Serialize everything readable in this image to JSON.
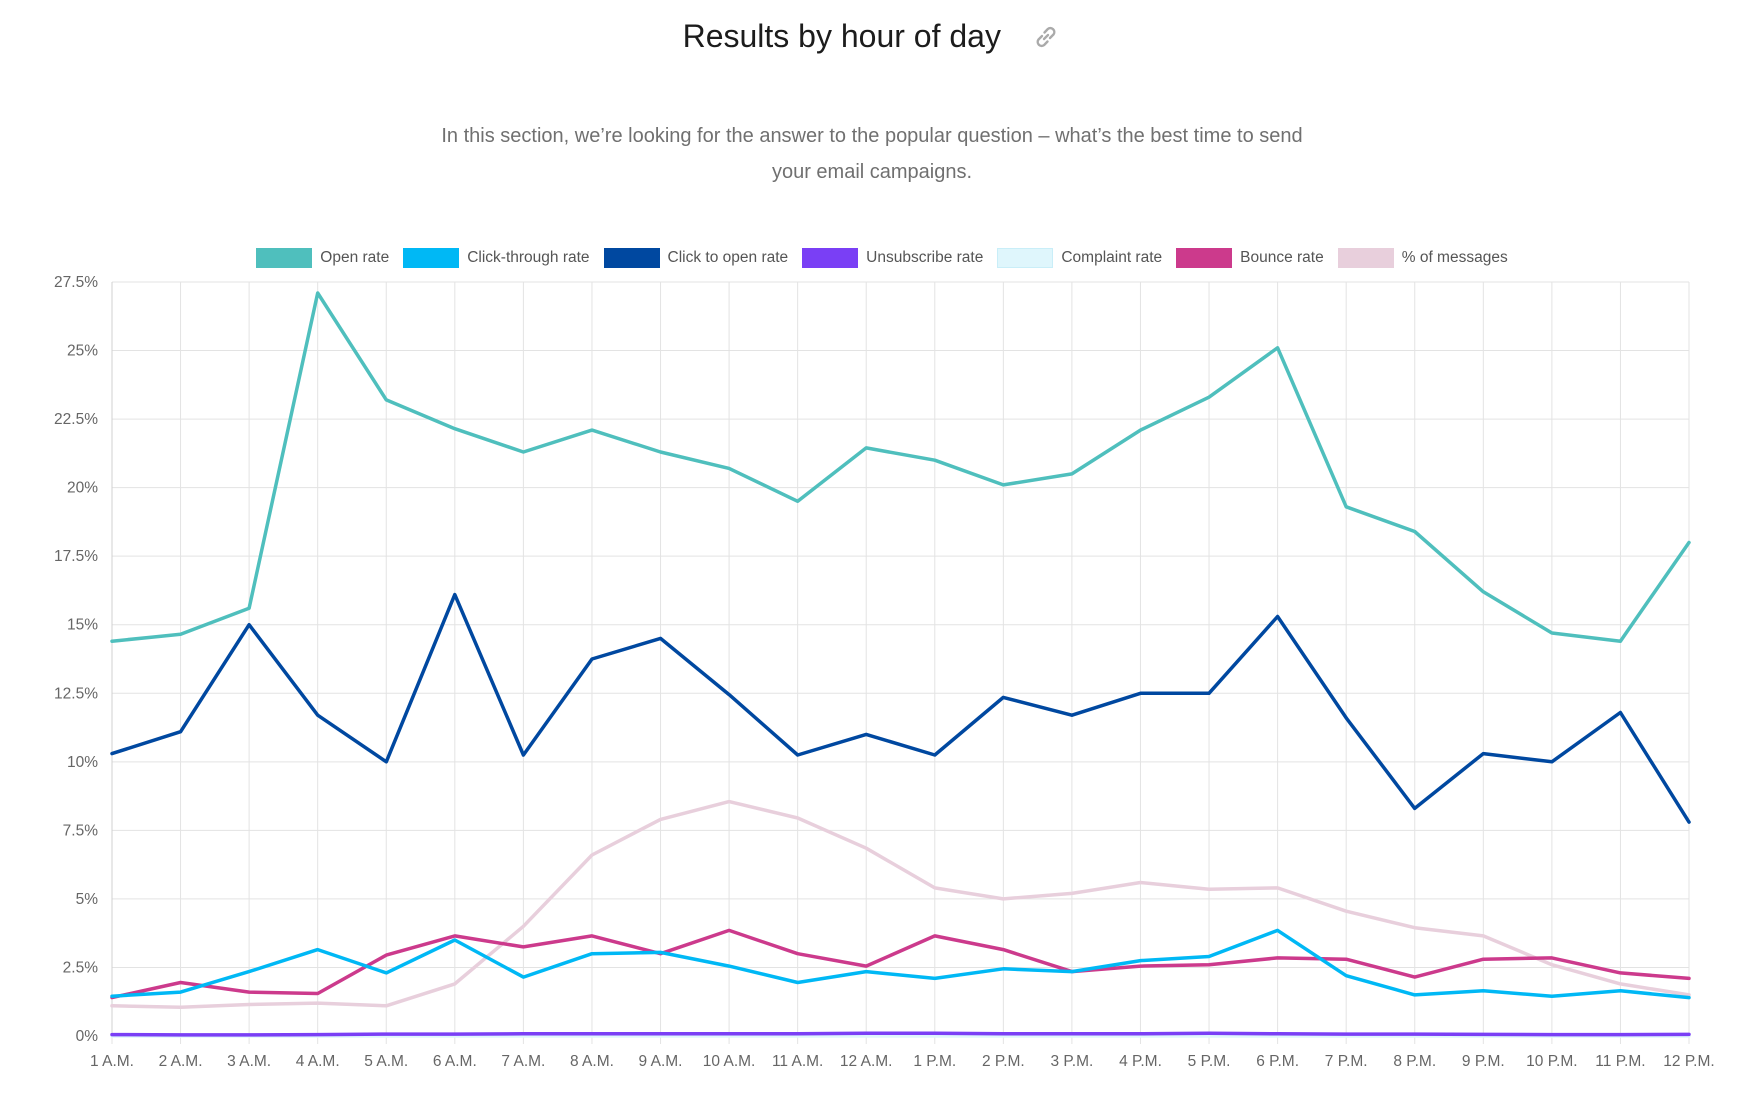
{
  "header": {
    "title": "Results by hour of day",
    "link_icon": "link-icon"
  },
  "subtitle": {
    "line1": "In this section, we’re looking for the answer to the popular question – what’s the best time to send",
    "line2": "your email campaigns."
  },
  "chart_data": {
    "type": "line",
    "title": "Results by hour of day",
    "xlabel": "",
    "ylabel": "",
    "ylim": [
      0,
      27.5
    ],
    "y_ticks": [
      "0%",
      "2.5%",
      "5%",
      "7.5%",
      "10%",
      "12.5%",
      "15%",
      "17.5%",
      "20%",
      "22.5%",
      "25%",
      "27.5%"
    ],
    "y_tick_values": [
      0,
      2.5,
      5,
      7.5,
      10,
      12.5,
      15,
      17.5,
      20,
      22.5,
      25,
      27.5
    ],
    "grid": true,
    "legend_placement": "top",
    "categories": [
      "1 A.M.",
      "2 A.M.",
      "3 A.M.",
      "4 A.M.",
      "5 A.M.",
      "6 A.M.",
      "7 A.M.",
      "8 A.M.",
      "9 A.M.",
      "10 A.M.",
      "11 A.M.",
      "12 A.M.",
      "1 P.M.",
      "2 P.M.",
      "3 P.M.",
      "4 P.M.",
      "5 P.M.",
      "6 P.M.",
      "7 P.M.",
      "8 P.M.",
      "9 P.M.",
      "10 P.M.",
      "11 P.M.",
      "12 P.M."
    ],
    "series": [
      {
        "name": "Open rate",
        "color": "#4fbfbd",
        "values": [
          14.4,
          14.65,
          15.6,
          27.1,
          23.2,
          22.15,
          21.3,
          22.1,
          21.3,
          20.7,
          19.5,
          21.45,
          21.0,
          20.1,
          20.5,
          22.1,
          23.3,
          25.1,
          19.3,
          18.4,
          16.2,
          14.7,
          14.4,
          18.0
        ]
      },
      {
        "name": "Click-through rate",
        "color": "#00b8f5",
        "values": [
          1.45,
          1.6,
          2.35,
          3.15,
          2.3,
          3.5,
          2.15,
          3.0,
          3.05,
          2.55,
          1.95,
          2.35,
          2.1,
          2.45,
          2.35,
          2.75,
          2.9,
          3.85,
          2.2,
          1.5,
          1.65,
          1.45,
          1.65,
          1.4
        ]
      },
      {
        "name": "Click to open rate",
        "color": "#0048a0",
        "values": [
          10.3,
          11.1,
          15.0,
          11.7,
          10.0,
          16.1,
          10.25,
          13.75,
          14.5,
          12.45,
          10.25,
          11.0,
          10.25,
          12.35,
          11.7,
          12.5,
          12.5,
          15.3,
          11.6,
          8.3,
          10.3,
          10.0,
          11.8,
          7.8
        ]
      },
      {
        "name": "Unsubscribe rate",
        "color": "#7a3ff5",
        "values": [
          0.05,
          0.04,
          0.04,
          0.05,
          0.07,
          0.07,
          0.08,
          0.08,
          0.08,
          0.08,
          0.08,
          0.1,
          0.1,
          0.08,
          0.08,
          0.08,
          0.1,
          0.08,
          0.07,
          0.07,
          0.06,
          0.05,
          0.05,
          0.06
        ]
      },
      {
        "name": "Complaint rate",
        "color": "#dff6fc",
        "values": [
          0,
          0,
          0,
          0,
          0,
          0,
          0,
          0,
          0,
          0,
          0,
          0,
          0,
          0,
          0,
          0,
          0,
          0,
          0,
          0,
          0,
          0,
          0,
          0
        ]
      },
      {
        "name": "Bounce rate",
        "color": "#cc3a8c",
        "values": [
          1.4,
          1.95,
          1.6,
          1.55,
          2.95,
          3.65,
          3.25,
          3.65,
          3.0,
          3.85,
          3.0,
          2.55,
          3.65,
          3.15,
          2.35,
          2.55,
          2.6,
          2.85,
          2.8,
          2.15,
          2.8,
          2.85,
          2.3,
          2.1
        ]
      },
      {
        "name": "% of messages",
        "color": "#e8cfdc",
        "values": [
          1.1,
          1.05,
          1.15,
          1.2,
          1.1,
          1.9,
          4.0,
          6.6,
          7.9,
          8.55,
          7.95,
          6.85,
          5.4,
          5.0,
          5.2,
          5.6,
          5.35,
          5.4,
          4.55,
          3.95,
          3.65,
          2.6,
          1.9,
          1.5
        ]
      }
    ]
  }
}
